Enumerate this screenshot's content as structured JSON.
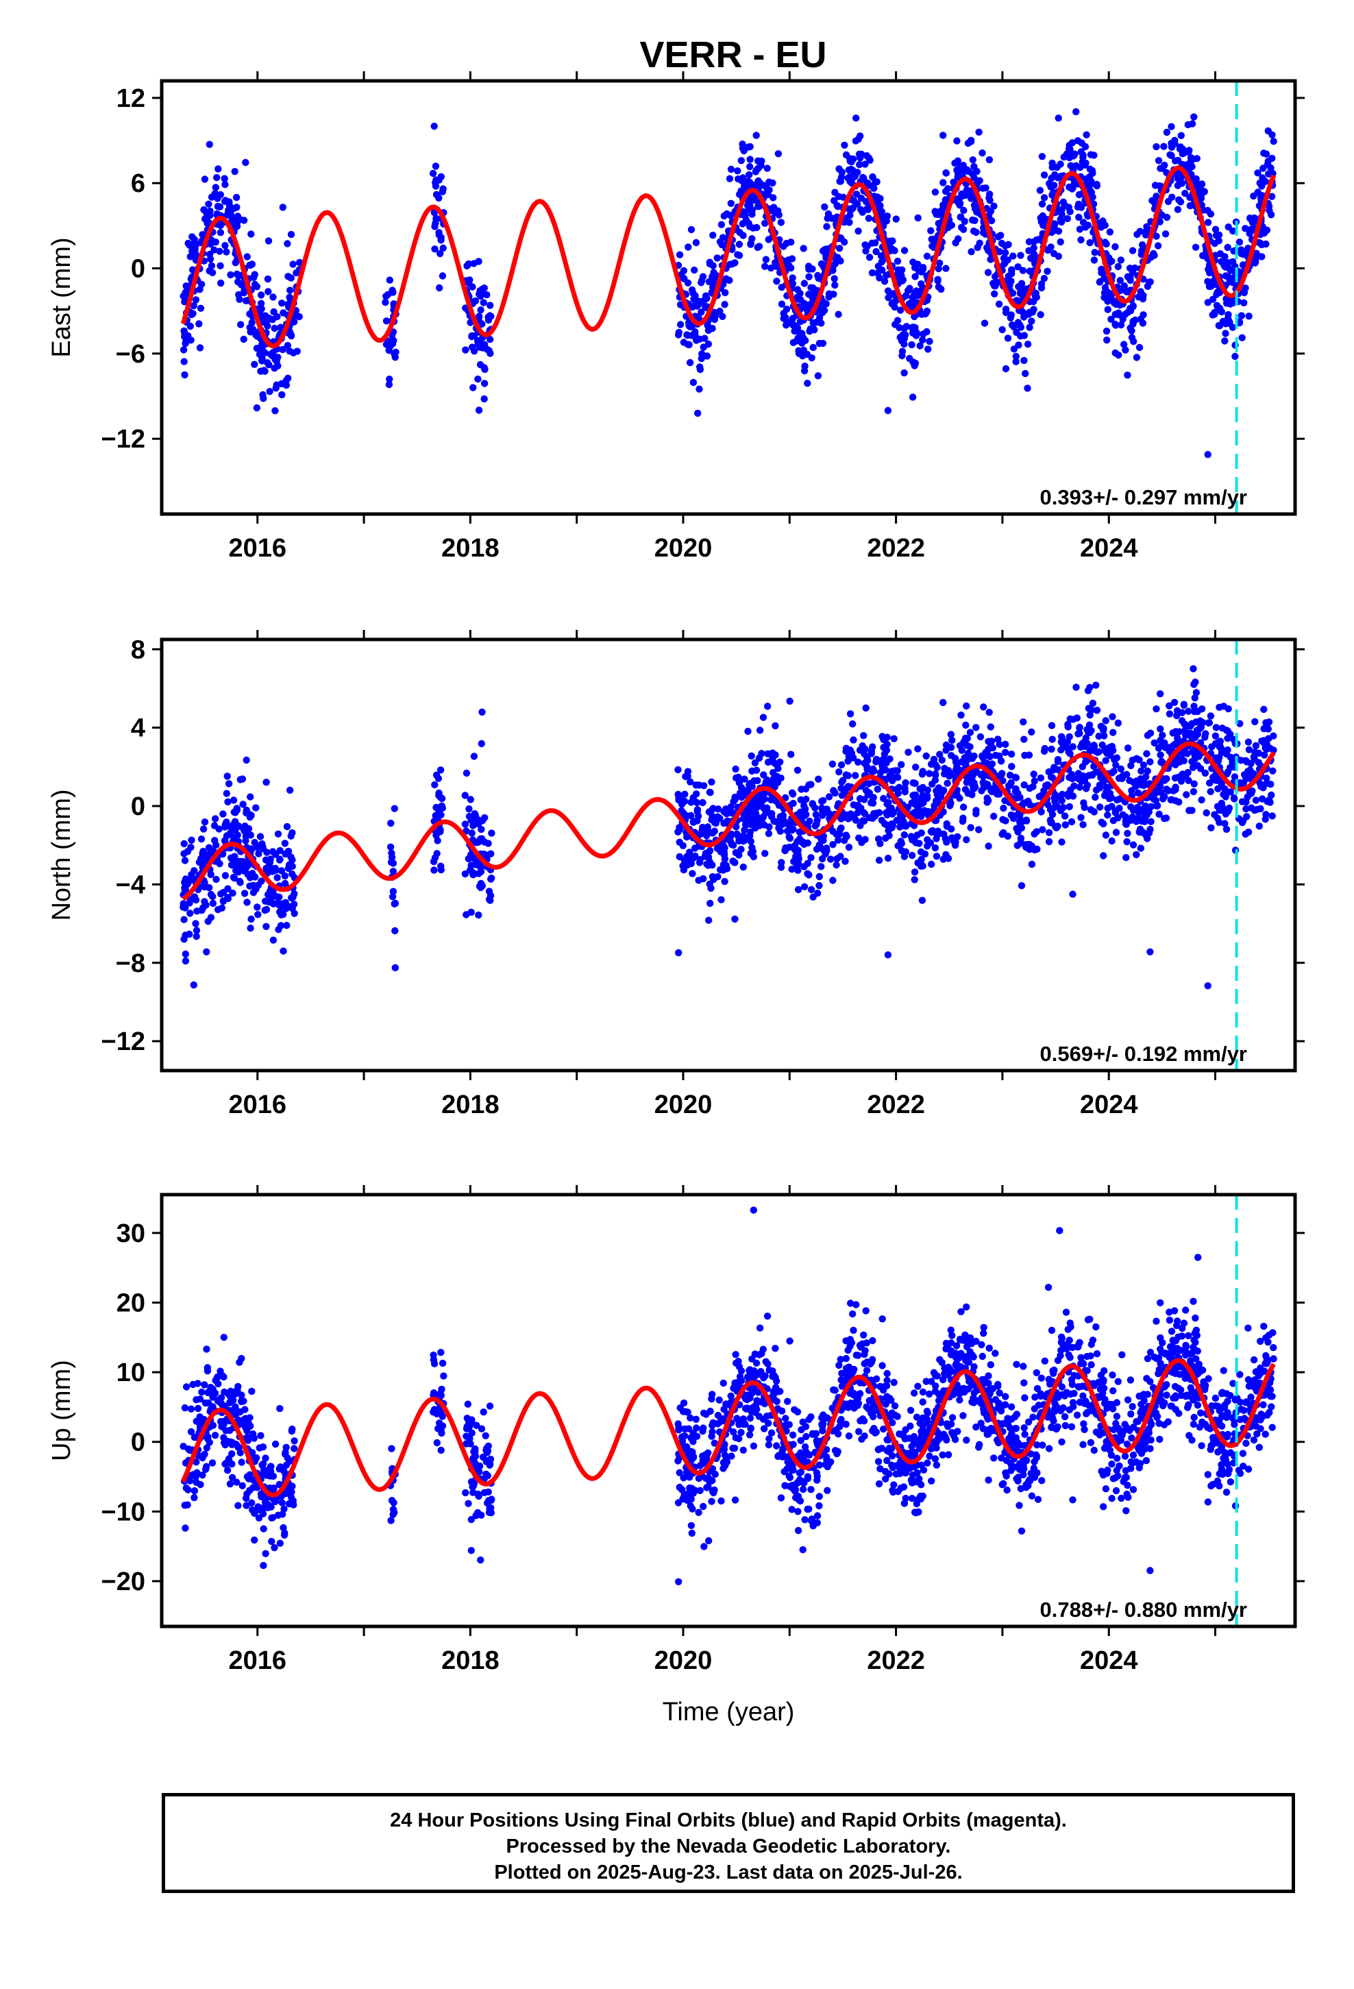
{
  "title": "VERR - EU",
  "xlabel": "Time (year)",
  "footer": {
    "line1": "24 Hour Positions Using Final Orbits (blue) and Rapid Orbits (magenta).",
    "line2": "Processed by the Nevada Geodetic Laboratory.",
    "line3": "Plotted on 2025-Aug-23. Last data on 2025-Jul-26."
  },
  "colors": {
    "points": "#0000ff",
    "model": "#ff0000",
    "marker_line": "#00e5e5"
  },
  "chart_data": [
    {
      "type": "scatter",
      "name": "east",
      "ylabel": "East (mm)",
      "xlim": [
        2015.1,
        2025.75
      ],
      "ylim": [
        -17.3,
        13.2
      ],
      "xticks": [
        2016,
        2018,
        2020,
        2022,
        2024
      ],
      "yticks": [
        12,
        6,
        0,
        -6,
        -12
      ],
      "ytick_labels": [
        "12",
        "6",
        "0",
        "−6",
        "−12"
      ],
      "annotation": "0.393+/- 0.297 mm/yr",
      "vline_x": 2025.2,
      "model": {
        "offset": -1.2,
        "rate": 0.393,
        "t0": 2015.3,
        "amp_start": 4.6,
        "amp_end": 4.6,
        "phase": 2015.4
      },
      "scatter_noise": 1.9,
      "data_segments": [
        [
          2015.3,
          2016.4
        ],
        [
          2017.2,
          2017.3
        ],
        [
          2017.65,
          2017.75
        ],
        [
          2017.95,
          2018.2
        ],
        [
          2019.95,
          2025.55
        ]
      ]
    },
    {
      "type": "scatter",
      "name": "north",
      "ylabel": "North (mm)",
      "xlim": [
        2015.1,
        2025.75
      ],
      "ylim": [
        -13.5,
        8.5
      ],
      "xticks": [
        2016,
        2018,
        2020,
        2022,
        2024
      ],
      "yticks": [
        8,
        4,
        0,
        -4,
        -8,
        -12
      ],
      "ytick_labels": [
        "8",
        "4",
        "0",
        "−4",
        "−8",
        "−12"
      ],
      "annotation": "0.569+/- 0.192 mm/yr",
      "vline_x": 2025.2,
      "model": {
        "offset": -3.5,
        "rate": 0.569,
        "t0": 2015.3,
        "amp_start": 1.3,
        "amp_end": 1.3,
        "phase": 2015.5
      },
      "scatter_noise": 1.5,
      "data_segments": [
        [
          2015.3,
          2016.35
        ],
        [
          2017.25,
          2017.3
        ],
        [
          2017.65,
          2017.75
        ],
        [
          2017.95,
          2018.2
        ],
        [
          2019.95,
          2025.55
        ]
      ]
    },
    {
      "type": "scatter",
      "name": "up",
      "ylabel": "Up (mm)",
      "xlim": [
        2015.1,
        2025.75
      ],
      "ylim": [
        -26.5,
        35.5
      ],
      "xticks": [
        2016,
        2018,
        2020,
        2022,
        2024
      ],
      "yticks": [
        30,
        20,
        10,
        0,
        -10,
        -20
      ],
      "ytick_labels": [
        "30",
        "20",
        "10",
        "0",
        "−10",
        "−20"
      ],
      "annotation": "0.788+/- 0.880 mm/yr",
      "vline_x": 2025.2,
      "model": {
        "offset": -2.0,
        "rate": 0.788,
        "t0": 2015.3,
        "amp_start": 6.3,
        "amp_end": 6.3,
        "phase": 2015.4
      },
      "scatter_noise": 4.2,
      "data_segments": [
        [
          2015.3,
          2016.35
        ],
        [
          2017.25,
          2017.3
        ],
        [
          2017.65,
          2017.75
        ],
        [
          2017.95,
          2018.2
        ],
        [
          2019.95,
          2025.55
        ]
      ]
    }
  ]
}
